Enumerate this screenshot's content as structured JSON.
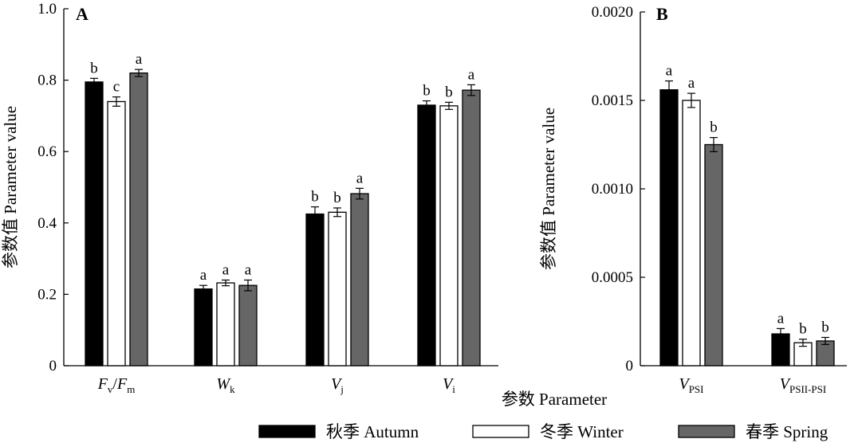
{
  "xlabel": "参数 Parameter",
  "legend": [
    {
      "label": "秋季 Autumn",
      "color": "#000000"
    },
    {
      "label": "冬季 Winter",
      "color": "#ffffff"
    },
    {
      "label": "春季 Spring",
      "color": "#666666"
    }
  ],
  "chart_data": [
    {
      "type": "bar",
      "panel": "A",
      "ylabel": "参数值 Parameter value",
      "ylim": [
        0,
        1.0
      ],
      "yticks": [
        "0",
        "0.2",
        "0.4",
        "0.6",
        "0.8",
        "1.0"
      ],
      "categories": [
        {
          "main": "F",
          "sub": "v",
          "sep": "/",
          "main2": "F",
          "sub2": "m"
        },
        {
          "main": "W",
          "sub": "k"
        },
        {
          "main": "V",
          "sub": "j"
        },
        {
          "main": "V",
          "sub": "i"
        }
      ],
      "series": [
        {
          "name": "秋季 Autumn",
          "values": [
            0.795,
            0.215,
            0.425,
            0.73
          ],
          "errors": [
            0.01,
            0.01,
            0.02,
            0.012
          ],
          "letters": [
            "b",
            "a",
            "b",
            "b"
          ]
        },
        {
          "name": "冬季 Winter",
          "values": [
            0.74,
            0.232,
            0.43,
            0.728
          ],
          "errors": [
            0.013,
            0.008,
            0.012,
            0.01
          ],
          "letters": [
            "c",
            "a",
            "b",
            "b"
          ]
        },
        {
          "name": "春季 Spring",
          "values": [
            0.82,
            0.225,
            0.482,
            0.772
          ],
          "errors": [
            0.01,
            0.015,
            0.015,
            0.015
          ],
          "letters": [
            "a",
            "a",
            "a",
            "a"
          ]
        }
      ]
    },
    {
      "type": "bar",
      "panel": "B",
      "ylabel": "参数值 Parameter value",
      "ylim": [
        0,
        0.002
      ],
      "yticks": [
        "0",
        "0.0005",
        "0.0010",
        "0.0015",
        "0.0020"
      ],
      "categories": [
        {
          "main": "V",
          "sub": "PSI"
        },
        {
          "main": "V",
          "sub": "PSII-PSI"
        }
      ],
      "series": [
        {
          "name": "秋季 Autumn",
          "values": [
            0.00156,
            0.00018
          ],
          "errors": [
            5e-05,
            3e-05
          ],
          "letters": [
            "a",
            "a"
          ]
        },
        {
          "name": "冬季 Winter",
          "values": [
            0.0015,
            0.00013
          ],
          "errors": [
            4e-05,
            2e-05
          ],
          "letters": [
            "a",
            "b"
          ]
        },
        {
          "name": "春季 Spring",
          "values": [
            0.00125,
            0.00014
          ],
          "errors": [
            4e-05,
            2e-05
          ],
          "letters": [
            "b",
            "b"
          ]
        }
      ]
    }
  ]
}
